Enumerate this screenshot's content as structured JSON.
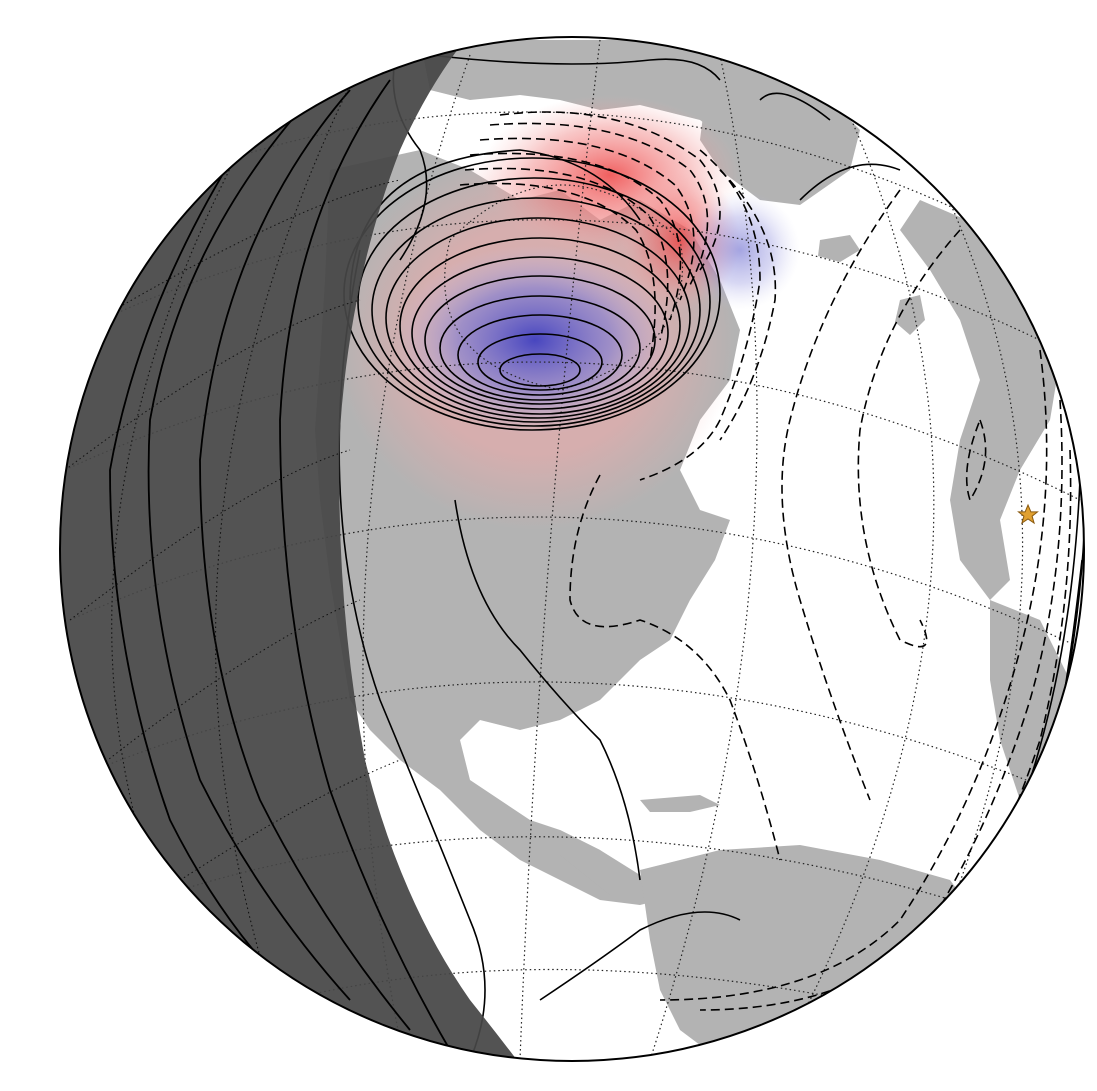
{
  "map": {
    "projection": "orthographic",
    "colors": {
      "ocean": "#ffffff",
      "land": "#b3b3b3",
      "night_shade": "#464646",
      "night_land": "#5e5e5e",
      "positive_anomaly": "#ee5555",
      "negative_anomaly": "#5a5ad2",
      "contour": "#000000",
      "graticule": "#222222",
      "marker": "#e0a030"
    },
    "contours": {
      "positive_style": "solid",
      "negative_style": "dashed"
    },
    "marker": {
      "symbol": "star",
      "icon": "star-icon"
    }
  }
}
